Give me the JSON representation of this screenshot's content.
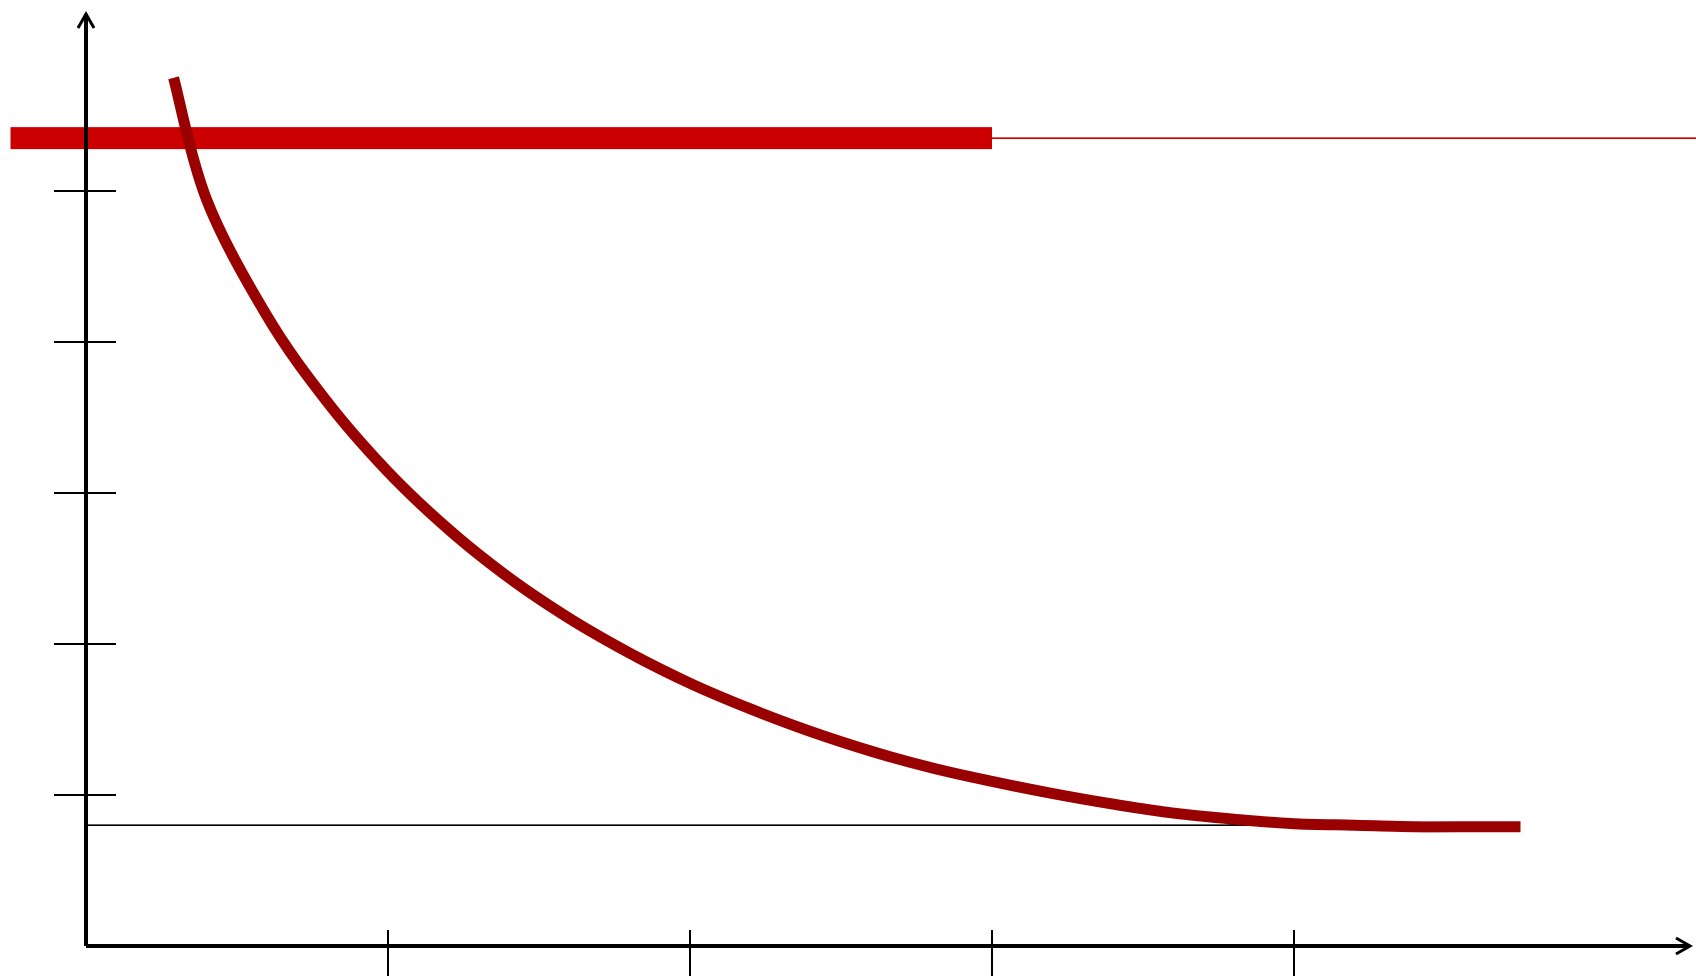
{
  "chart_data": {
    "type": "line",
    "title": "",
    "xlabel": "",
    "ylabel": "",
    "xlim": [
      0,
      5
    ],
    "ylim": [
      0,
      6
    ],
    "x_ticks": [
      1,
      2,
      3,
      4
    ],
    "y_ticks": [
      1,
      2,
      3,
      4,
      5
    ],
    "grid": false,
    "legend": "none",
    "series": [
      {
        "style": "curve",
        "color": "#990000",
        "x": [
          0.29,
          0.4,
          0.6,
          0.8,
          1.0,
          1.2,
          1.4,
          1.6,
          1.8,
          2.0,
          2.2,
          2.4,
          2.6,
          2.8,
          3.0,
          3.2,
          3.4,
          3.6,
          3.8,
          4.0,
          4.2,
          4.4,
          4.6,
          4.75
        ],
        "y": [
          5.75,
          4.94,
          4.17,
          3.6,
          3.14,
          2.76,
          2.44,
          2.17,
          1.94,
          1.74,
          1.57,
          1.42,
          1.29,
          1.18,
          1.09,
          1.01,
          0.94,
          0.88,
          0.84,
          0.81,
          0.8,
          0.79,
          0.79,
          0.79
        ]
      }
    ],
    "reference_lines": [
      {
        "orientation": "horizontal",
        "y": 5.35,
        "color": "#cc0000",
        "style": "thin",
        "x_range": [
          -0.25,
          5.4
        ]
      },
      {
        "orientation": "horizontal",
        "y": 5.35,
        "color": "#cc0000",
        "style": "thick",
        "x_range": [
          -0.25,
          3.0
        ]
      },
      {
        "orientation": "horizontal",
        "y": 0.8,
        "color": "#000000",
        "style": "thin",
        "x_range": [
          0,
          4.75
        ]
      }
    ]
  }
}
